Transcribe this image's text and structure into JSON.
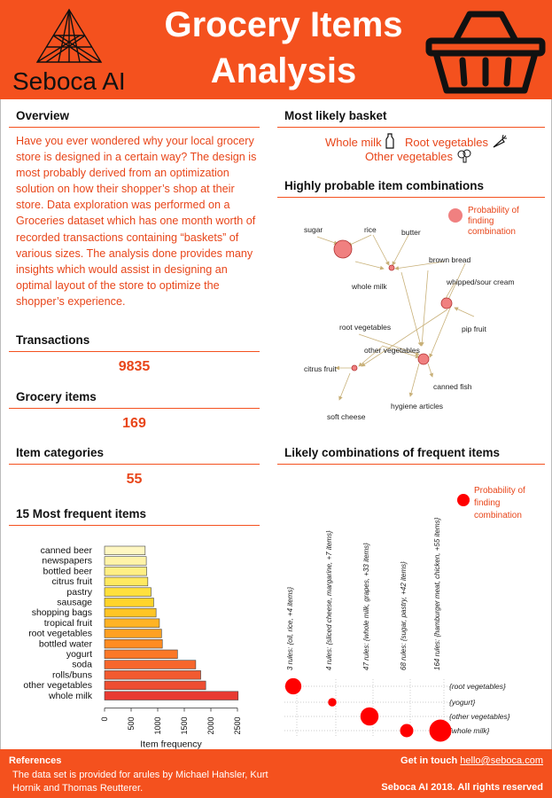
{
  "header": {
    "brand": "Seboca AI",
    "title_line1": "Grocery Items",
    "title_line2": "Analysis",
    "logo_icon": "triangle-mesh-logo-icon",
    "basket_icon": "shopping-basket-icon"
  },
  "colors": {
    "accent": "#f4511e",
    "text_accent": "#e8461a",
    "node": "#f08080",
    "bubble": "#ff0000"
  },
  "overview": {
    "heading": "Overview",
    "text": "Have you ever wondered why your local grocery store is designed in a certain way? The design is most probably derived from an optimization solution on how their shopper’s shop at their store. Data exploration was performed on a Groceries dataset which has one month worth of recorded transactions containing “baskets” of various sizes.  The analysis done provides many insights which would assist in designing an optimal layout of the store to optimize the shopper’s experience."
  },
  "stats": {
    "transactions_label": "Transactions",
    "transactions_value": "9835",
    "items_label": "Grocery items",
    "items_value": "169",
    "categories_label": "Item categories",
    "categories_value": "55"
  },
  "basket": {
    "heading": "Most likely basket",
    "items": [
      {
        "label": "Whole milk",
        "icon": "milk-bottle-icon"
      },
      {
        "label": "Root vegetables",
        "icon": "carrot-icon"
      },
      {
        "label": "Other vegetables",
        "icon": "broccoli-icon"
      }
    ]
  },
  "network": {
    "heading": "Highly probable item combinations",
    "legend": "Probability of finding combination",
    "nodes": [
      "sugar",
      "rice",
      "butter",
      "brown bread",
      "whipped/sour cream",
      "whole milk",
      "pip fruit",
      "root vegetables",
      "other vegetables",
      "citrus fruit",
      "canned fish",
      "hygiene articles",
      "soft cheese"
    ]
  },
  "frequent_heading": "15 Most frequent items",
  "grouped_heading": "Likely combinations of frequent items",
  "chart_data": [
    {
      "type": "bar",
      "orientation": "horizontal",
      "categories": [
        "canned beer",
        "newspapers",
        "bottled beer",
        "citrus fruit",
        "pastry",
        "sausage",
        "shopping bags",
        "tropical fruit",
        "root vegetables",
        "bottled water",
        "yogurt",
        "soda",
        "rolls/buns",
        "other vegetables",
        "whole milk"
      ],
      "values": [
        764,
        785,
        792,
        814,
        875,
        924,
        969,
        1032,
        1072,
        1087,
        1372,
        1715,
        1809,
        1903,
        2513
      ],
      "xlabel": "Item frequency",
      "ylabel": "",
      "xlim": [
        0,
        2500
      ],
      "xticks": [
        0,
        500,
        1000,
        1500,
        2000,
        2500
      ],
      "colors": [
        "#fff7c2",
        "#fff3a8",
        "#ffef84",
        "#ffe960",
        "#ffe03c",
        "#ffd42a",
        "#ffc526",
        "#ffb324",
        "#ffa022",
        "#ff8c22",
        "#fb7828",
        "#f7662c",
        "#f25a30",
        "#ee4e32",
        "#e83a32"
      ]
    },
    {
      "type": "scatter",
      "columns": [
        "3 rules: {oil, rice, +4 items}",
        "4 rules: {sliced cheese, margarine, +7 items}",
        "47 rules: {whole milk, grapes, +33 items}",
        "68 rules: {sugar, pastry, +42 items}",
        "164 rules: {hamburger meat, chicken, +55 items}"
      ],
      "rows": [
        "{root vegetables}",
        "{yogurt}",
        "{other vegetables}",
        "{whole milk}"
      ],
      "points": [
        {
          "column": 0,
          "row": 0,
          "size": 0.65
        },
        {
          "column": 1,
          "row": 1,
          "size": 0.25
        },
        {
          "column": 2,
          "row": 2,
          "size": 0.75
        },
        {
          "column": 3,
          "row": 3,
          "size": 0.5
        },
        {
          "column": 4,
          "row": 3,
          "size": 0.95
        }
      ],
      "legend": "Probability of finding combination"
    }
  ],
  "footer": {
    "ref_heading": "References",
    "ref_text": " The data set is provided for arules by Michael Hahsler, Kurt Hornik and Thomas Reutterer.",
    "contact_label": "Get in touch",
    "contact_email": "hello@seboca.com",
    "copyright": "Seboca AI 2018. All rights reserved"
  }
}
